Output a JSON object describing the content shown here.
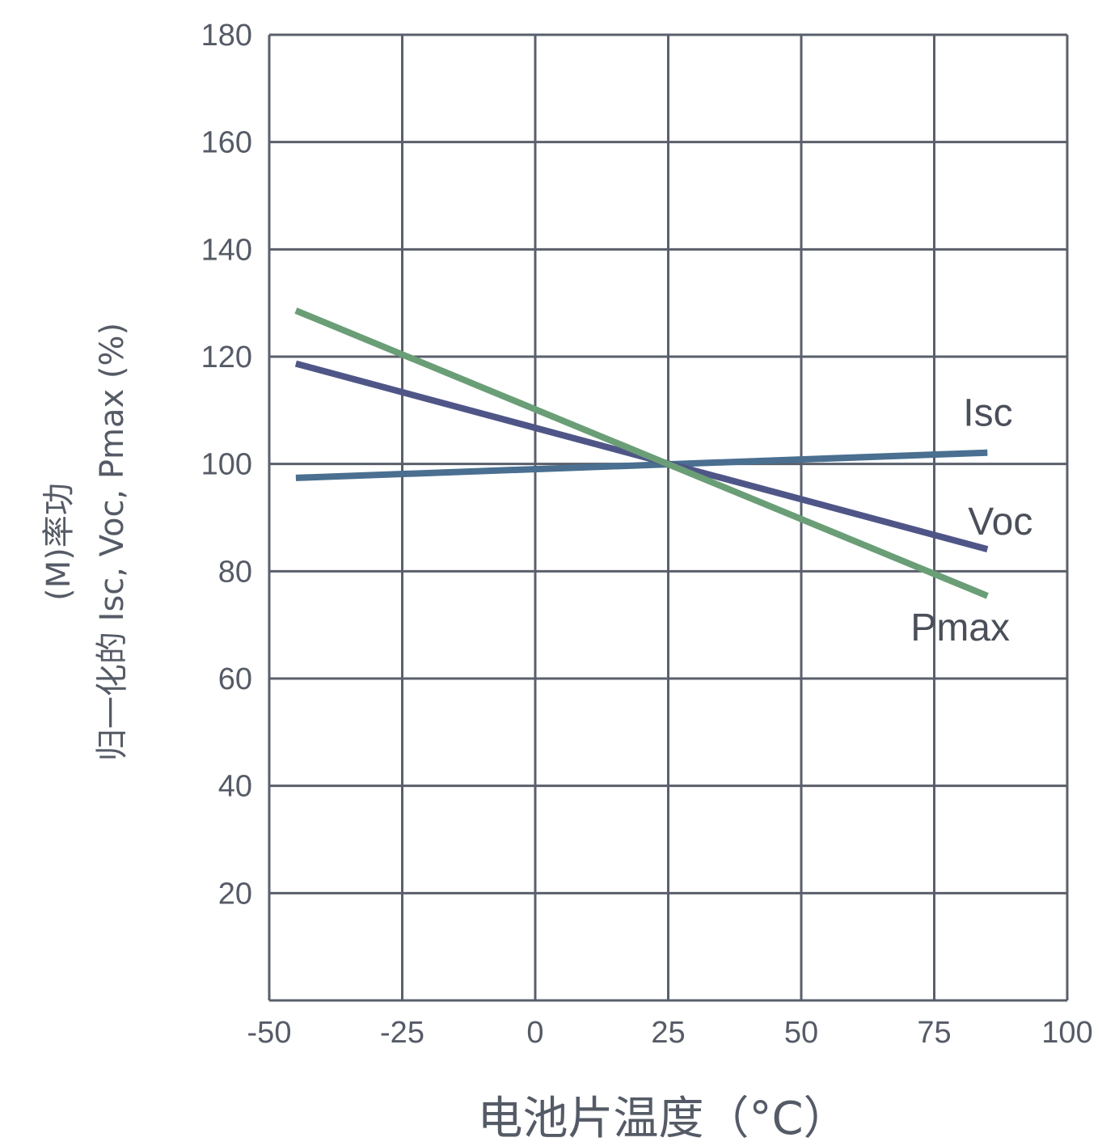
{
  "chart_data": {
    "type": "line",
    "xlabel": "电池片温度（°C）",
    "ylabel_line1": "归一化的 Isc, Voc, Pmax (%)",
    "ylabel_line2": "(M)率功",
    "xlim": [
      -50,
      100
    ],
    "ylim": [
      0,
      180
    ],
    "x_ticks": [
      -50,
      -25,
      0,
      25,
      50,
      75,
      100
    ],
    "y_ticks": [
      20,
      40,
      60,
      80,
      100,
      120,
      140,
      160,
      180
    ],
    "grid": true,
    "series": [
      {
        "name": "Isc",
        "color": "#4a6f90",
        "x": [
          -45,
          85
        ],
        "y": [
          97.4,
          102.1
        ]
      },
      {
        "name": "Voc",
        "color": "#4f5687",
        "x": [
          -45,
          85
        ],
        "y": [
          118.7,
          84.1
        ]
      },
      {
        "name": "Pmax",
        "color": "#6a9e76",
        "x": [
          -45,
          85
        ],
        "y": [
          128.6,
          75.4
        ]
      }
    ]
  }
}
